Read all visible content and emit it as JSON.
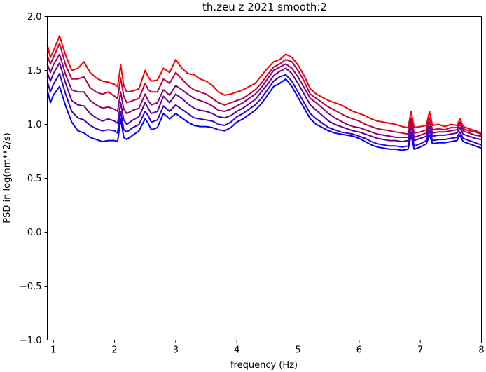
{
  "chart_data": {
    "type": "line",
    "title": "th.zeu z 2021 smooth:2",
    "xlabel": "frequency (Hz)",
    "ylabel": "PSD in log(nm**2/s)",
    "xlim": [
      0.9,
      8.0
    ],
    "ylim": [
      -1.0,
      2.0
    ],
    "xticks": [
      1,
      2,
      3,
      4,
      5,
      6,
      7,
      8
    ],
    "yticks": [
      -1.0,
      -0.5,
      0.0,
      0.5,
      1.0,
      1.5,
      2.0
    ],
    "xtick_labels": [
      "1",
      "2",
      "3",
      "4",
      "5",
      "6",
      "7",
      "8"
    ],
    "ytick_labels": [
      "−1.0",
      "−0.5",
      "0.0",
      "0.5",
      "1.0",
      "1.5",
      "2.0"
    ],
    "grid": false,
    "x": [
      0.9,
      0.95,
      1.0,
      1.1,
      1.2,
      1.3,
      1.4,
      1.5,
      1.6,
      1.7,
      1.8,
      1.9,
      2.0,
      2.05,
      2.1,
      2.15,
      2.2,
      2.3,
      2.4,
      2.5,
      2.55,
      2.6,
      2.7,
      2.8,
      2.9,
      3.0,
      3.1,
      3.2,
      3.3,
      3.4,
      3.5,
      3.6,
      3.7,
      3.8,
      3.9,
      4.0,
      4.1,
      4.2,
      4.3,
      4.4,
      4.5,
      4.6,
      4.7,
      4.8,
      4.9,
      5.0,
      5.1,
      5.2,
      5.3,
      5.4,
      5.5,
      5.6,
      5.7,
      5.8,
      5.9,
      6.0,
      6.1,
      6.2,
      6.3,
      6.4,
      6.5,
      6.6,
      6.7,
      6.8,
      6.85,
      6.9,
      7.0,
      7.1,
      7.15,
      7.2,
      7.3,
      7.4,
      7.5,
      7.6,
      7.65,
      7.7,
      7.8,
      7.9,
      8.0
    ],
    "series": [
      {
        "color": "#ff0000",
        "values": [
          1.74,
          1.62,
          1.68,
          1.82,
          1.64,
          1.5,
          1.52,
          1.58,
          1.48,
          1.43,
          1.4,
          1.39,
          1.37,
          1.35,
          1.55,
          1.36,
          1.3,
          1.31,
          1.33,
          1.5,
          1.44,
          1.4,
          1.41,
          1.52,
          1.48,
          1.6,
          1.52,
          1.47,
          1.46,
          1.42,
          1.4,
          1.36,
          1.3,
          1.27,
          1.28,
          1.3,
          1.32,
          1.35,
          1.38,
          1.45,
          1.52,
          1.58,
          1.6,
          1.65,
          1.62,
          1.55,
          1.45,
          1.33,
          1.28,
          1.25,
          1.22,
          1.2,
          1.18,
          1.15,
          1.12,
          1.1,
          1.08,
          1.05,
          1.03,
          1.02,
          1.01,
          1.0,
          0.98,
          0.97,
          1.12,
          0.97,
          0.98,
          0.99,
          1.12,
          0.99,
          1.0,
          0.98,
          1.0,
          0.99,
          1.05,
          0.98,
          0.96,
          0.94,
          0.92
        ]
      },
      {
        "color": "#c0003f",
        "values": [
          1.64,
          1.56,
          1.62,
          1.75,
          1.55,
          1.42,
          1.42,
          1.44,
          1.34,
          1.3,
          1.28,
          1.3,
          1.26,
          1.24,
          1.43,
          1.26,
          1.2,
          1.22,
          1.24,
          1.38,
          1.32,
          1.3,
          1.3,
          1.42,
          1.38,
          1.48,
          1.42,
          1.36,
          1.32,
          1.3,
          1.28,
          1.24,
          1.2,
          1.18,
          1.2,
          1.22,
          1.24,
          1.28,
          1.32,
          1.38,
          1.46,
          1.53,
          1.56,
          1.6,
          1.58,
          1.5,
          1.4,
          1.28,
          1.24,
          1.2,
          1.16,
          1.13,
          1.1,
          1.07,
          1.05,
          1.03,
          1.0,
          0.98,
          0.96,
          0.95,
          0.94,
          0.93,
          0.92,
          0.91,
          1.06,
          0.92,
          0.93,
          0.95,
          1.06,
          0.95,
          0.96,
          0.95,
          0.97,
          0.97,
          1.02,
          0.96,
          0.94,
          0.93,
          0.91
        ]
      },
      {
        "color": "#8f0070",
        "values": [
          1.56,
          1.48,
          1.55,
          1.65,
          1.46,
          1.32,
          1.3,
          1.3,
          1.22,
          1.18,
          1.15,
          1.16,
          1.14,
          1.12,
          1.3,
          1.14,
          1.1,
          1.13,
          1.15,
          1.28,
          1.22,
          1.18,
          1.2,
          1.32,
          1.27,
          1.36,
          1.32,
          1.28,
          1.24,
          1.22,
          1.2,
          1.17,
          1.13,
          1.12,
          1.14,
          1.17,
          1.2,
          1.24,
          1.28,
          1.34,
          1.42,
          1.5,
          1.53,
          1.56,
          1.52,
          1.44,
          1.34,
          1.24,
          1.2,
          1.15,
          1.1,
          1.06,
          1.03,
          1.0,
          0.98,
          0.97,
          0.95,
          0.93,
          0.91,
          0.9,
          0.89,
          0.88,
          0.88,
          0.88,
          1.02,
          0.88,
          0.9,
          0.92,
          1.02,
          0.92,
          0.93,
          0.93,
          0.94,
          0.95,
          1.0,
          0.94,
          0.92,
          0.9,
          0.89
        ]
      },
      {
        "color": "#6000a0",
        "values": [
          1.48,
          1.4,
          1.47,
          1.57,
          1.38,
          1.22,
          1.18,
          1.17,
          1.1,
          1.06,
          1.03,
          1.05,
          1.03,
          1.01,
          1.2,
          1.04,
          1.0,
          1.04,
          1.07,
          1.2,
          1.15,
          1.1,
          1.12,
          1.26,
          1.2,
          1.28,
          1.24,
          1.19,
          1.15,
          1.13,
          1.12,
          1.1,
          1.07,
          1.06,
          1.08,
          1.12,
          1.15,
          1.19,
          1.23,
          1.3,
          1.37,
          1.45,
          1.49,
          1.52,
          1.47,
          1.38,
          1.28,
          1.18,
          1.13,
          1.08,
          1.03,
          1.0,
          0.98,
          0.96,
          0.94,
          0.93,
          0.91,
          0.89,
          0.87,
          0.86,
          0.85,
          0.85,
          0.84,
          0.85,
          0.98,
          0.85,
          0.87,
          0.89,
          0.98,
          0.89,
          0.9,
          0.9,
          0.91,
          0.92,
          0.97,
          0.91,
          0.89,
          0.87,
          0.86
        ]
      },
      {
        "color": "#3000d0",
        "values": [
          1.4,
          1.3,
          1.37,
          1.47,
          1.28,
          1.12,
          1.06,
          1.04,
          0.99,
          0.96,
          0.94,
          0.95,
          0.94,
          0.92,
          1.12,
          0.95,
          0.93,
          0.97,
          1.0,
          1.12,
          1.08,
          1.02,
          1.04,
          1.17,
          1.12,
          1.18,
          1.14,
          1.1,
          1.06,
          1.05,
          1.04,
          1.03,
          1.0,
          0.99,
          1.02,
          1.07,
          1.1,
          1.14,
          1.18,
          1.24,
          1.32,
          1.4,
          1.44,
          1.46,
          1.4,
          1.3,
          1.2,
          1.1,
          1.05,
          1.01,
          0.97,
          0.95,
          0.93,
          0.92,
          0.91,
          0.89,
          0.87,
          0.84,
          0.82,
          0.81,
          0.8,
          0.8,
          0.79,
          0.8,
          0.93,
          0.8,
          0.82,
          0.85,
          0.94,
          0.85,
          0.86,
          0.86,
          0.87,
          0.88,
          0.93,
          0.87,
          0.85,
          0.83,
          0.81
        ]
      },
      {
        "color": "#0000ff",
        "values": [
          1.32,
          1.2,
          1.27,
          1.35,
          1.17,
          1.02,
          0.94,
          0.92,
          0.88,
          0.86,
          0.84,
          0.85,
          0.85,
          0.84,
          1.05,
          0.88,
          0.86,
          0.9,
          0.94,
          1.05,
          1.01,
          0.95,
          0.97,
          1.1,
          1.05,
          1.1,
          1.06,
          1.02,
          0.99,
          0.98,
          0.98,
          0.97,
          0.95,
          0.94,
          0.97,
          1.02,
          1.05,
          1.09,
          1.13,
          1.19,
          1.27,
          1.35,
          1.38,
          1.42,
          1.35,
          1.25,
          1.15,
          1.05,
          1.0,
          0.97,
          0.94,
          0.92,
          0.91,
          0.9,
          0.89,
          0.87,
          0.84,
          0.81,
          0.79,
          0.78,
          0.77,
          0.77,
          0.76,
          0.77,
          0.9,
          0.77,
          0.79,
          0.82,
          0.9,
          0.82,
          0.83,
          0.83,
          0.84,
          0.85,
          0.9,
          0.84,
          0.82,
          0.8,
          0.78
        ]
      }
    ]
  }
}
